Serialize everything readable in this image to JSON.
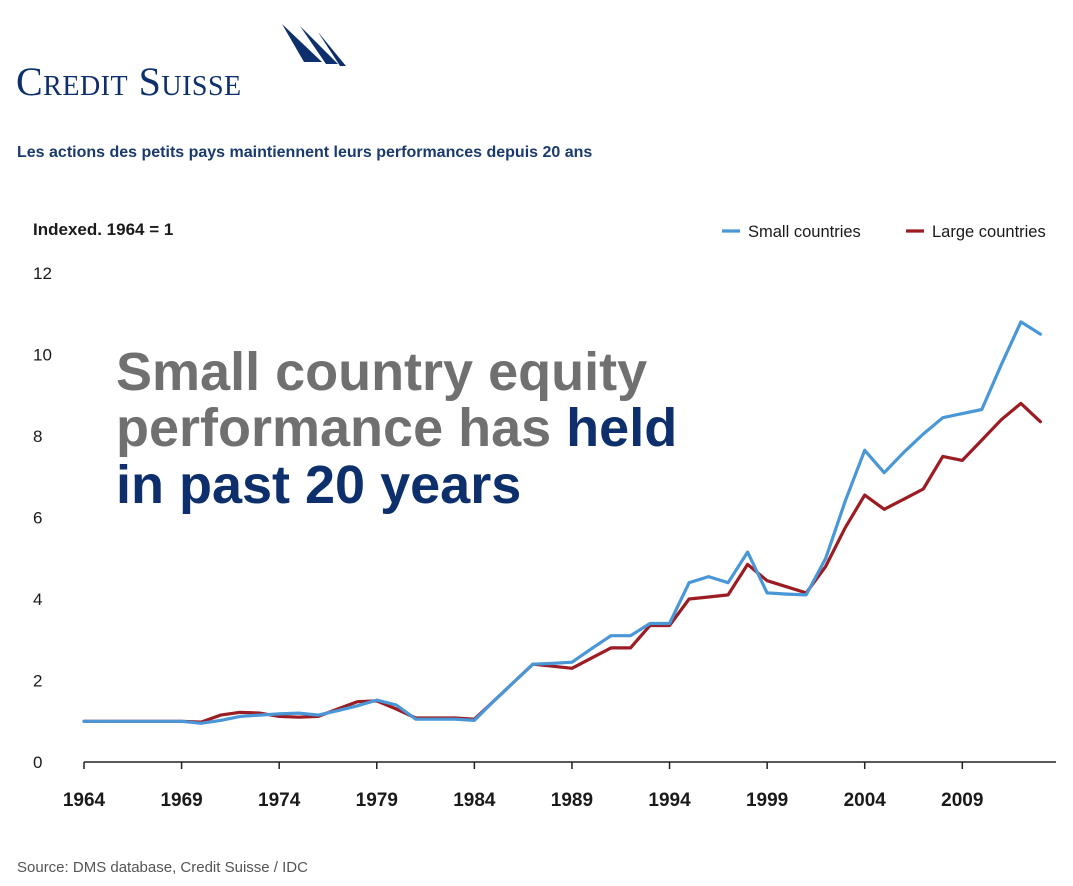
{
  "brand": {
    "logo_text": "Credit Suisse",
    "color": "#0d2f6b"
  },
  "subtitle": "Les actions des petits pays maintiennent leurs performances depuis 20 ans",
  "source": "Source: DMS database, Credit Suisse / IDC",
  "chart_data": {
    "type": "line",
    "ylabel": "Indexed. 1964 = 1",
    "ylim": [
      0,
      12
    ],
    "yticks": [
      0,
      2,
      4,
      6,
      8,
      10,
      12
    ],
    "xlim": [
      1964,
      2013.8
    ],
    "xticks": [
      1964,
      1969,
      1974,
      1979,
      1984,
      1989,
      1994,
      1999,
      2004,
      2009
    ],
    "grid": false,
    "legend_position": "top-right",
    "annotation": {
      "lines": [
        [
          {
            "text": "Small country equity",
            "bold": false
          }
        ],
        [
          {
            "text": "performance has ",
            "bold": false
          },
          {
            "text": "held",
            "bold": true
          }
        ],
        [
          {
            "text": "in past 20 years",
            "bold": true
          }
        ]
      ]
    },
    "series": [
      {
        "name": "Small countries",
        "color": "#4a97d8",
        "x": [
          1964,
          1965,
          1966,
          1967,
          1968,
          1969,
          1970,
          1971,
          1972,
          1973,
          1974,
          1975,
          1976,
          1977,
          1978,
          1979,
          1980,
          1981,
          1982,
          1983,
          1984,
          1985,
          1986,
          1987,
          1988,
          1989,
          1990,
          1991,
          1992,
          1993,
          1994,
          1995,
          1996,
          1997,
          1998,
          1999,
          2000,
          2001,
          2002,
          2003,
          2004,
          2005,
          2006,
          2007,
          2008,
          2009,
          2010,
          2011,
          2012,
          2013
        ],
        "values": [
          1.0,
          1.0,
          1.0,
          1.0,
          1.0,
          1.0,
          0.95,
          1.02,
          1.12,
          1.15,
          1.18,
          1.2,
          1.15,
          1.26,
          1.38,
          1.52,
          1.4,
          1.05,
          1.05,
          1.05,
          1.02,
          1.5,
          1.95,
          2.4,
          2.42,
          2.45,
          2.78,
          3.1,
          3.1,
          3.4,
          3.4,
          4.4,
          4.55,
          4.4,
          5.15,
          4.15,
          4.12,
          4.1,
          5.0,
          6.4,
          7.65,
          7.1,
          7.6,
          8.05,
          8.45,
          8.55,
          8.65,
          9.75,
          10.8,
          10.5
        ]
      },
      {
        "name": "Large countries",
        "color": "#9b1c23",
        "x": [
          1964,
          1965,
          1966,
          1967,
          1968,
          1969,
          1970,
          1971,
          1972,
          1973,
          1974,
          1975,
          1976,
          1977,
          1978,
          1979,
          1980,
          1981,
          1982,
          1983,
          1984,
          1985,
          1986,
          1987,
          1988,
          1989,
          1990,
          1991,
          1992,
          1993,
          1994,
          1995,
          1996,
          1997,
          1998,
          1999,
          2000,
          2001,
          2002,
          2003,
          2004,
          2005,
          2006,
          2007,
          2008,
          2009,
          2010,
          2011,
          2012,
          2013
        ],
        "values": [
          1.0,
          1.0,
          1.0,
          1.0,
          1.0,
          1.0,
          0.98,
          1.15,
          1.22,
          1.2,
          1.12,
          1.1,
          1.12,
          1.3,
          1.48,
          1.5,
          1.3,
          1.08,
          1.08,
          1.08,
          1.05,
          1.5,
          1.95,
          2.4,
          2.35,
          2.3,
          2.55,
          2.8,
          2.8,
          3.35,
          3.35,
          4.0,
          4.05,
          4.1,
          4.85,
          4.45,
          4.3,
          4.15,
          4.8,
          5.75,
          6.55,
          6.2,
          6.45,
          6.7,
          7.5,
          7.4,
          7.9,
          8.4,
          8.8,
          8.35
        ]
      }
    ]
  }
}
